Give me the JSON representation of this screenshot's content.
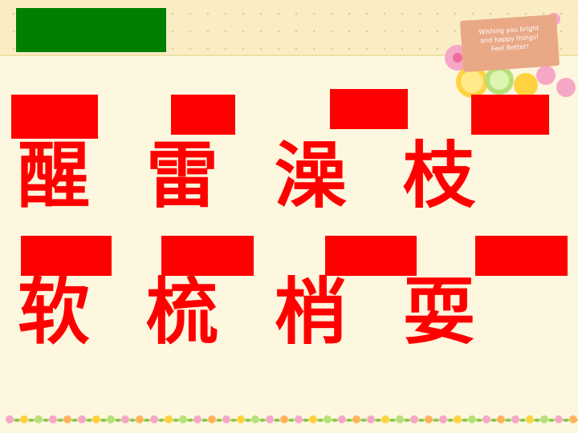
{
  "decoration": {
    "card_lines": [
      "Wishing you bright",
      "and happy things!",
      "Feel Better!"
    ]
  },
  "characters": {
    "row1": [
      "醒",
      "雷",
      "澡",
      "枝"
    ],
    "row2": [
      "软",
      "梳",
      "梢",
      "耍"
    ]
  },
  "colors": {
    "background": "#fdf7df",
    "top_band": "#faedc4",
    "green_block": "#008000",
    "red": "#ff0000"
  }
}
